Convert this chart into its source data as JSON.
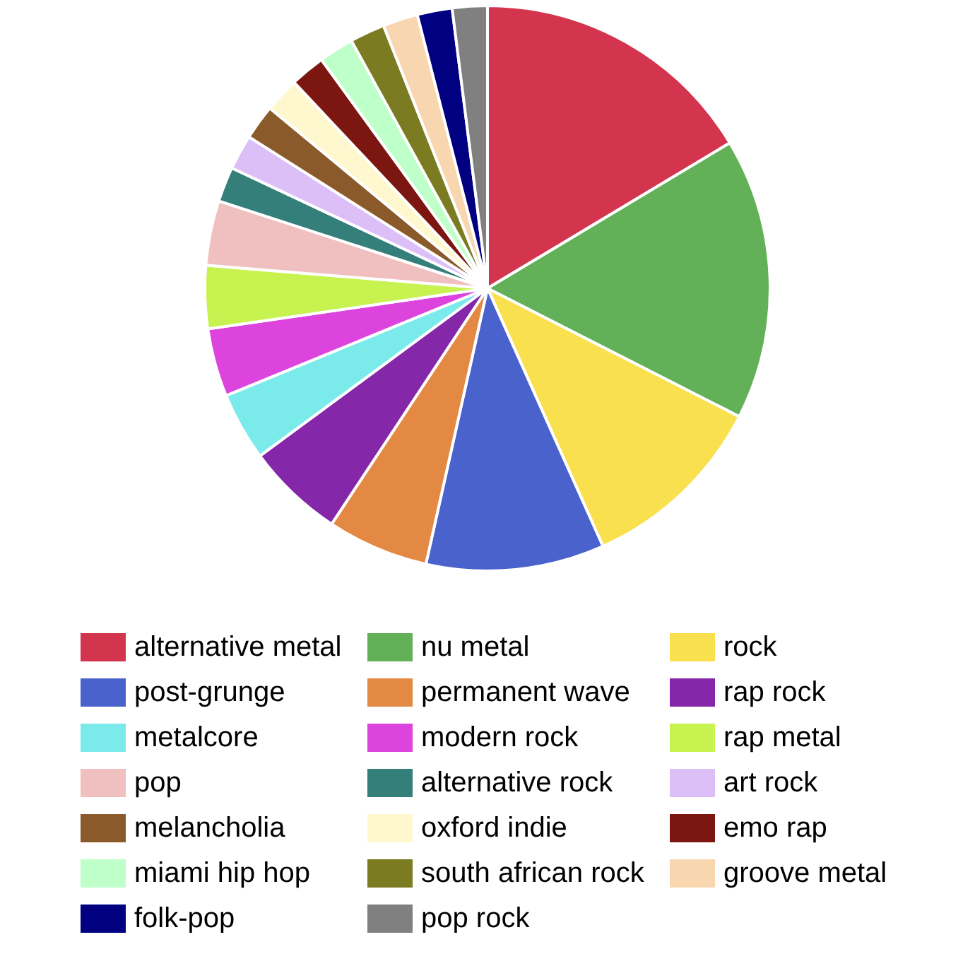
{
  "chart_data": {
    "type": "pie",
    "categories": [
      "alternative metal",
      "nu metal",
      "rock",
      "post-grunge",
      "permanent wave",
      "rap rock",
      "metalcore",
      "modern rock",
      "rap metal",
      "pop",
      "alternative rock",
      "art rock",
      "melancholia",
      "oxford indie",
      "emo rap",
      "miami hip hop",
      "south african rock",
      "groove metal",
      "folk-pop",
      "pop rock"
    ],
    "values": [
      16.4,
      16.1,
      10.8,
      10.2,
      5.8,
      5.6,
      3.9,
      3.9,
      3.6,
      3.7,
      2,
      2,
      2,
      2,
      2,
      2,
      2,
      2,
      2,
      2
    ],
    "colors": [
      "#d3354f",
      "#62b158",
      "#f9e04f",
      "#4a63cc",
      "#e38943",
      "#8427a9",
      "#7aeaea",
      "#dd44dd",
      "#c8f24f",
      "#efc0bf",
      "#357f7b",
      "#dcbff7",
      "#8b5a2b",
      "#fff8cf",
      "#7b1710",
      "#bfffc9",
      "#7b7b22",
      "#f8d6b0",
      "#000080",
      "#808080"
    ],
    "legend": "bottom"
  }
}
